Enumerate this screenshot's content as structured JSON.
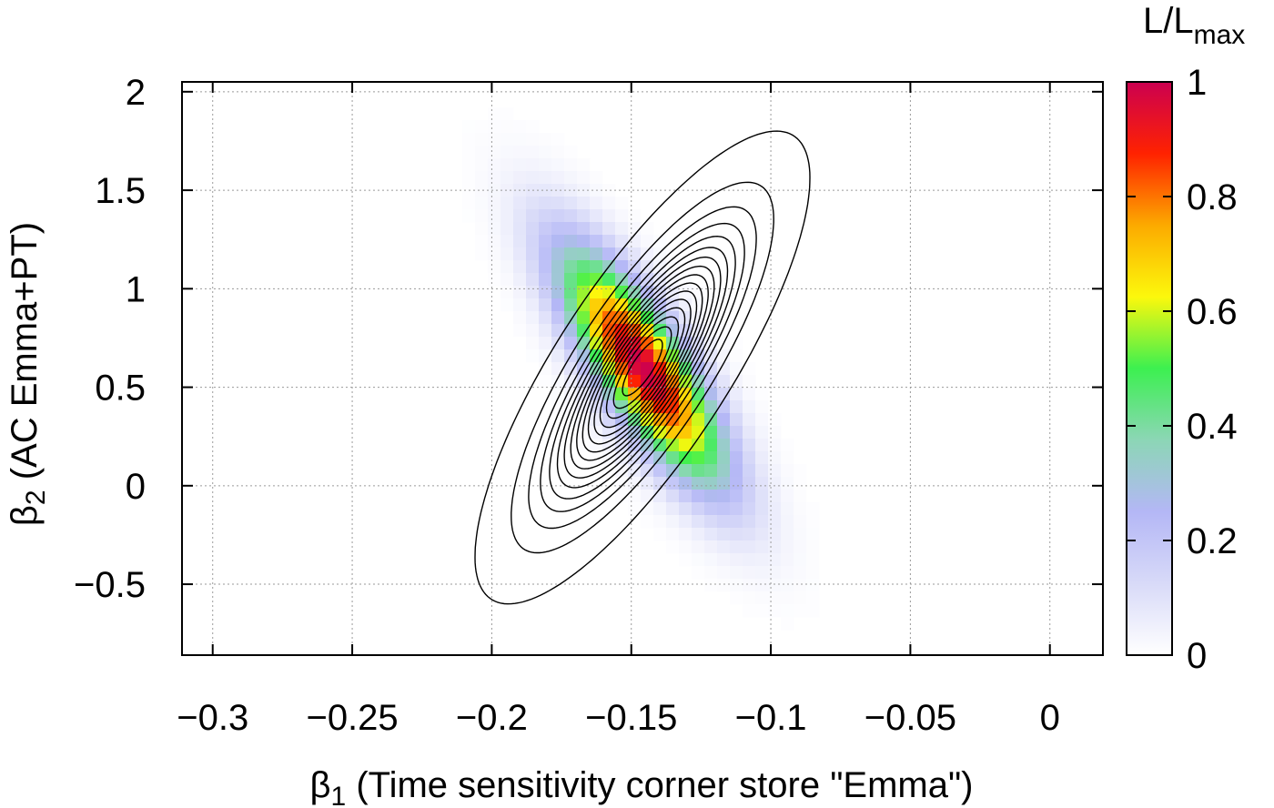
{
  "chart_data": {
    "type": "heatmap",
    "xlabel": {
      "greek": "β",
      "sub": "1",
      "text": " (Time sensitivity corner store \"Emma\")"
    },
    "ylabel": {
      "greek": "β",
      "sub": "2",
      "text": " (AC Emma+PT)"
    },
    "xlim": [
      -0.311,
      0.019
    ],
    "ylim": [
      -0.86,
      2.05
    ],
    "x_ticks": [
      -0.3,
      -0.25,
      -0.2,
      -0.15,
      -0.1,
      -0.05,
      0
    ],
    "x_tick_labels": [
      "−0.3",
      "−0.25",
      "−0.2",
      "−0.15",
      "−0.1",
      "−0.05",
      "0"
    ],
    "y_ticks": [
      -0.5,
      0,
      0.5,
      1,
      1.5,
      2
    ],
    "y_tick_labels": [
      "−0.5",
      "0",
      "0.5",
      "1",
      "1.5",
      "2"
    ],
    "grid": true,
    "peak": {
      "x": -0.146,
      "y": 0.6
    },
    "spread": {
      "x": 0.02,
      "y": 0.4,
      "correlation": -0.8
    },
    "contour_levels": [
      0.0111,
      0.063,
      0.125,
      0.188,
      0.25,
      0.313,
      0.375,
      0.438,
      0.5,
      0.563,
      0.625,
      0.688,
      0.75,
      0.813,
      0.875,
      0.938
    ],
    "colorbar": {
      "title": {
        "text": "L/L",
        "sub": "max"
      },
      "range": [
        0,
        1
      ],
      "ticks": [
        0,
        0.2,
        0.4,
        0.6,
        0.8,
        1
      ],
      "tick_labels": [
        "0",
        "0.2",
        "0.4",
        "0.6",
        "0.8",
        "1"
      ],
      "colors": [
        "#ffffff",
        "#d8daf8",
        "#b4b7f6",
        "#8cd6b6",
        "#3cf050",
        "#fcf80c",
        "#fcaa00",
        "#ff2200",
        "#cc0050"
      ]
    }
  }
}
